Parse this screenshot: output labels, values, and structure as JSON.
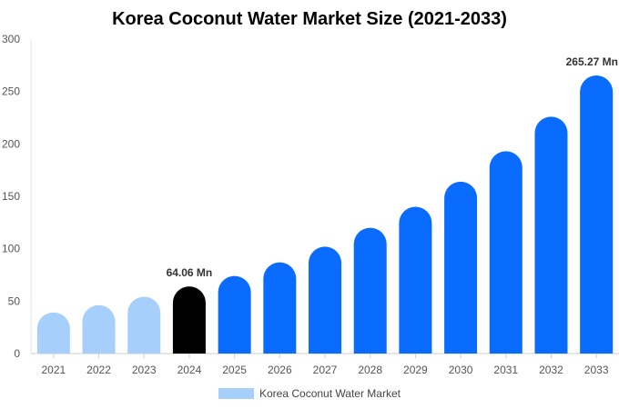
{
  "chart_data": {
    "type": "bar",
    "title": "Korea Coconut Water Market Size (2021-2033)",
    "xlabel": "",
    "ylabel": "",
    "ylim": [
      0,
      300
    ],
    "yticks": [
      0,
      50,
      100,
      150,
      200,
      250,
      300
    ],
    "grid": false,
    "legend_position": "bottom",
    "categories": [
      "2021",
      "2022",
      "2023",
      "2024",
      "2025",
      "2026",
      "2027",
      "2028",
      "2029",
      "2030",
      "2031",
      "2032",
      "2033"
    ],
    "series": [
      {
        "name": "Korea Coconut Water Market",
        "values": [
          39.2,
          46.2,
          54.2,
          64.06,
          74.0,
          87.0,
          102.0,
          120.0,
          140.0,
          164.0,
          193.0,
          226.0,
          265.27
        ]
      }
    ],
    "bar_colors": [
      "#a6cffb",
      "#a6cffb",
      "#a6cffb",
      "#000000",
      "#0a6cff",
      "#0a6cff",
      "#0a6cff",
      "#0a6cff",
      "#0a6cff",
      "#0a6cff",
      "#0a6cff",
      "#0a6cff",
      "#0a6cff"
    ],
    "legend_color": "#a6cffb",
    "data_labels": [
      {
        "index": 3,
        "text": "64.06 Mn"
      },
      {
        "index": 12,
        "text": "265.27 Mn"
      }
    ]
  }
}
